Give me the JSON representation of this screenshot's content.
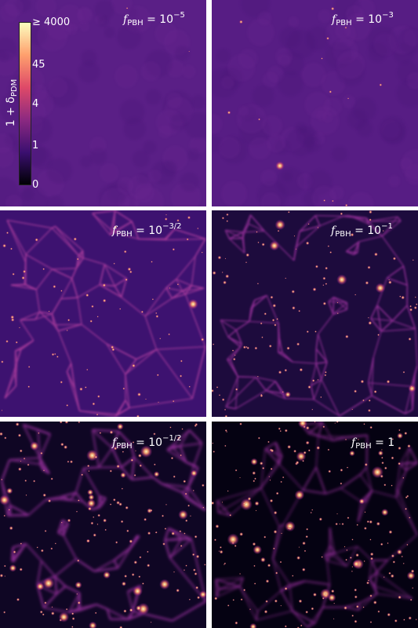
{
  "colorbar": {
    "title_main": "1 + δ",
    "title_sub": "PDM",
    "ticks": [
      "≥ 4000",
      "45",
      "4",
      "1",
      "0"
    ],
    "colors": [
      "#000004",
      "#3b0f70",
      "#8c2981",
      "#de4968",
      "#fe9f6d",
      "#fcfdbf"
    ]
  },
  "panels": [
    {
      "label_prefix": "f",
      "label_sub": "PBH",
      "label_eq": "= 10",
      "label_sup": "−5",
      "level": 0
    },
    {
      "label_prefix": "f",
      "label_sub": "PBH",
      "label_eq": "= 10",
      "label_sup": "−3",
      "level": 1
    },
    {
      "label_prefix": "f",
      "label_sub": "PBH",
      "label_eq": "= 10",
      "label_sup": "−3/2",
      "level": 2
    },
    {
      "label_prefix": "f",
      "label_sub": "PBH",
      "label_eq": "= 10",
      "label_sup": "−1",
      "level": 3
    },
    {
      "label_prefix": "f",
      "label_sub": "PBH",
      "label_eq": "= 10",
      "label_sup": "−1/2",
      "level": 4
    },
    {
      "label_prefix": "f",
      "label_sub": "PBH",
      "label_eq": "= 1",
      "label_sup": "",
      "level": 5
    }
  ]
}
